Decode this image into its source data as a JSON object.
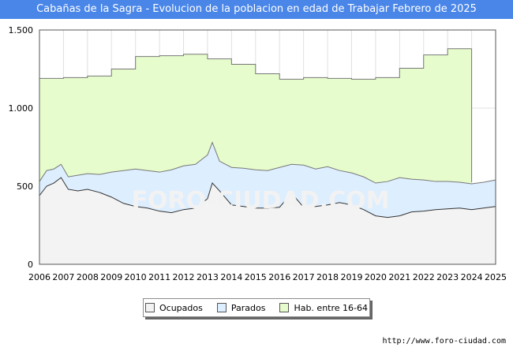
{
  "title": "Cabañas de la Sagra - Evolucion de la poblacion en edad de Trabajar Febrero de 2025",
  "source": "http://www.foro-ciudad.com",
  "watermark": "FORO-CIUDAD.COM",
  "colors": {
    "title_bg": "#4a86e8",
    "hab": "#e6fccc",
    "parados": "#ddeeff",
    "ocupados": "#f3f3f3",
    "line": "#777777",
    "line_dark": "#333333"
  },
  "chart_data": {
    "type": "area",
    "title": "Cabañas de la Sagra - Evolucion de la poblacion en edad de Trabajar Febrero de 2025",
    "xlabel": "",
    "ylabel": "",
    "xlim": [
      2006,
      2025
    ],
    "ylim": [
      0,
      1500
    ],
    "x_ticks": [
      "2006",
      "2007",
      "2008",
      "2009",
      "2010",
      "2011",
      "2012",
      "2013",
      "2014",
      "2015",
      "2016",
      "2017",
      "2018",
      "2019",
      "2020",
      "2021",
      "2022",
      "2023",
      "2024",
      "2025"
    ],
    "y_ticks": [
      {
        "value": 0,
        "label": "0"
      },
      {
        "value": 500,
        "label": "500"
      },
      {
        "value": 1000,
        "label": "1.000"
      },
      {
        "value": 1500,
        "label": "1.500"
      }
    ],
    "grid": true,
    "legend_position": "bottom",
    "series": [
      {
        "name": "Hab. entre 16-64",
        "color": "#e6fccc",
        "x": [
          2006,
          2007,
          2007,
          2008,
          2008,
          2009,
          2009,
          2010,
          2010,
          2011,
          2011,
          2012,
          2012,
          2013,
          2013,
          2014,
          2014,
          2015,
          2015,
          2016,
          2016,
          2017,
          2017,
          2018,
          2018,
          2019,
          2019,
          2020,
          2020,
          2021,
          2021,
          2022,
          2022,
          2023,
          2023,
          2024
        ],
        "values": [
          1190,
          1190,
          1195,
          1195,
          1205,
          1205,
          1250,
          1250,
          1330,
          1330,
          1335,
          1335,
          1345,
          1345,
          1315,
          1315,
          1280,
          1280,
          1220,
          1220,
          1185,
          1185,
          1195,
          1195,
          1190,
          1190,
          1185,
          1185,
          1195,
          1195,
          1255,
          1255,
          1340,
          1340,
          1380,
          1380
        ]
      },
      {
        "name": "Parados",
        "color": "#ddeeff",
        "x": [
          2006,
          2006.3,
          2006.6,
          2006.9,
          2007.2,
          2007.6,
          2008,
          2008.5,
          2009,
          2009.5,
          2010,
          2010.5,
          2011,
          2011.5,
          2012,
          2012.5,
          2013,
          2013.2,
          2013.5,
          2014,
          2014.5,
          2015,
          2015.5,
          2016,
          2016.5,
          2017,
          2017.5,
          2018,
          2018.5,
          2019,
          2019.5,
          2020,
          2020.5,
          2021,
          2021.5,
          2022,
          2022.5,
          2023,
          2023.5,
          2024,
          2024.5,
          2025
        ],
        "values": [
          530,
          600,
          610,
          640,
          560,
          570,
          580,
          575,
          590,
          600,
          610,
          600,
          590,
          605,
          630,
          640,
          700,
          780,
          660,
          620,
          615,
          605,
          600,
          620,
          640,
          635,
          610,
          625,
          600,
          585,
          560,
          520,
          530,
          555,
          545,
          540,
          530,
          530,
          525,
          515,
          525,
          540
        ]
      },
      {
        "name": "Ocupados",
        "color": "#f3f3f3",
        "x": [
          2006,
          2006.3,
          2006.6,
          2006.9,
          2007.2,
          2007.6,
          2008,
          2008.5,
          2009,
          2009.5,
          2010,
          2010.5,
          2011,
          2011.5,
          2012,
          2012.5,
          2013,
          2013.2,
          2013.5,
          2014,
          2014.5,
          2015,
          2015.5,
          2016,
          2016.5,
          2017,
          2017.5,
          2018,
          2018.5,
          2019,
          2019.5,
          2020,
          2020.5,
          2021,
          2021.5,
          2022,
          2022.5,
          2023,
          2023.5,
          2024,
          2024.5,
          2025
        ],
        "values": [
          440,
          500,
          520,
          555,
          480,
          470,
          480,
          460,
          430,
          390,
          370,
          360,
          340,
          330,
          350,
          360,
          420,
          520,
          470,
          380,
          370,
          360,
          360,
          365,
          455,
          365,
          370,
          380,
          395,
          380,
          350,
          310,
          300,
          310,
          335,
          340,
          350,
          355,
          360,
          350,
          360,
          370
        ]
      }
    ]
  }
}
